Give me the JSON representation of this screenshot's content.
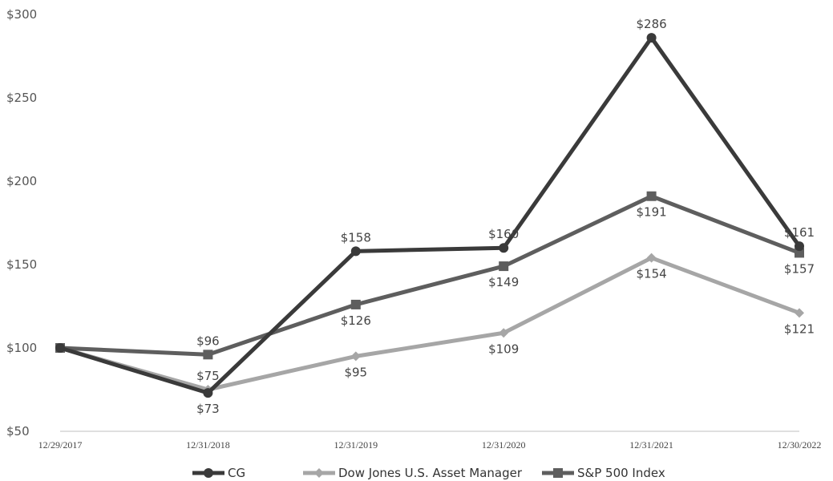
{
  "chart_data": {
    "type": "line",
    "title": "",
    "xlabel": "",
    "ylabel": "",
    "categories": [
      "12/29/2017",
      "12/31/2018",
      "12/31/2019",
      "12/31/2020",
      "12/31/2021",
      "12/30/2022"
    ],
    "ylim": [
      50,
      300
    ],
    "yticks": [
      50,
      100,
      150,
      200,
      250,
      300
    ],
    "ytick_labels": [
      "$50",
      "$100",
      "$150",
      "$200",
      "$250",
      "$300"
    ],
    "grid": false,
    "legend_position": "bottom",
    "series": [
      {
        "name": "CG",
        "marker": "circle",
        "color": "#3a3a3a",
        "values": [
          100,
          73,
          158,
          160,
          286,
          161
        ],
        "labels": [
          "",
          "$73",
          "$158",
          "$160",
          "$286",
          "$161"
        ],
        "label_pos": [
          "",
          "below",
          "above",
          "above",
          "above",
          "above"
        ]
      },
      {
        "name": "Dow Jones U.S. Asset Manager",
        "marker": "diamond",
        "color": "#a6a6a6",
        "values": [
          100,
          75,
          95,
          109,
          154,
          121
        ],
        "labels": [
          "",
          "$75",
          "$95",
          "$109",
          "$154",
          "$121"
        ],
        "label_pos": [
          "",
          "above",
          "below",
          "below",
          "below",
          "below"
        ]
      },
      {
        "name": "S&P 500 Index",
        "marker": "square",
        "color": "#5e5e5e",
        "values": [
          100,
          96,
          126,
          149,
          191,
          157
        ],
        "labels": [
          "",
          "$96",
          "$126",
          "$149",
          "$191",
          "$157"
        ],
        "label_pos": [
          "",
          "above",
          "below",
          "below",
          "below",
          "below"
        ]
      }
    ]
  }
}
